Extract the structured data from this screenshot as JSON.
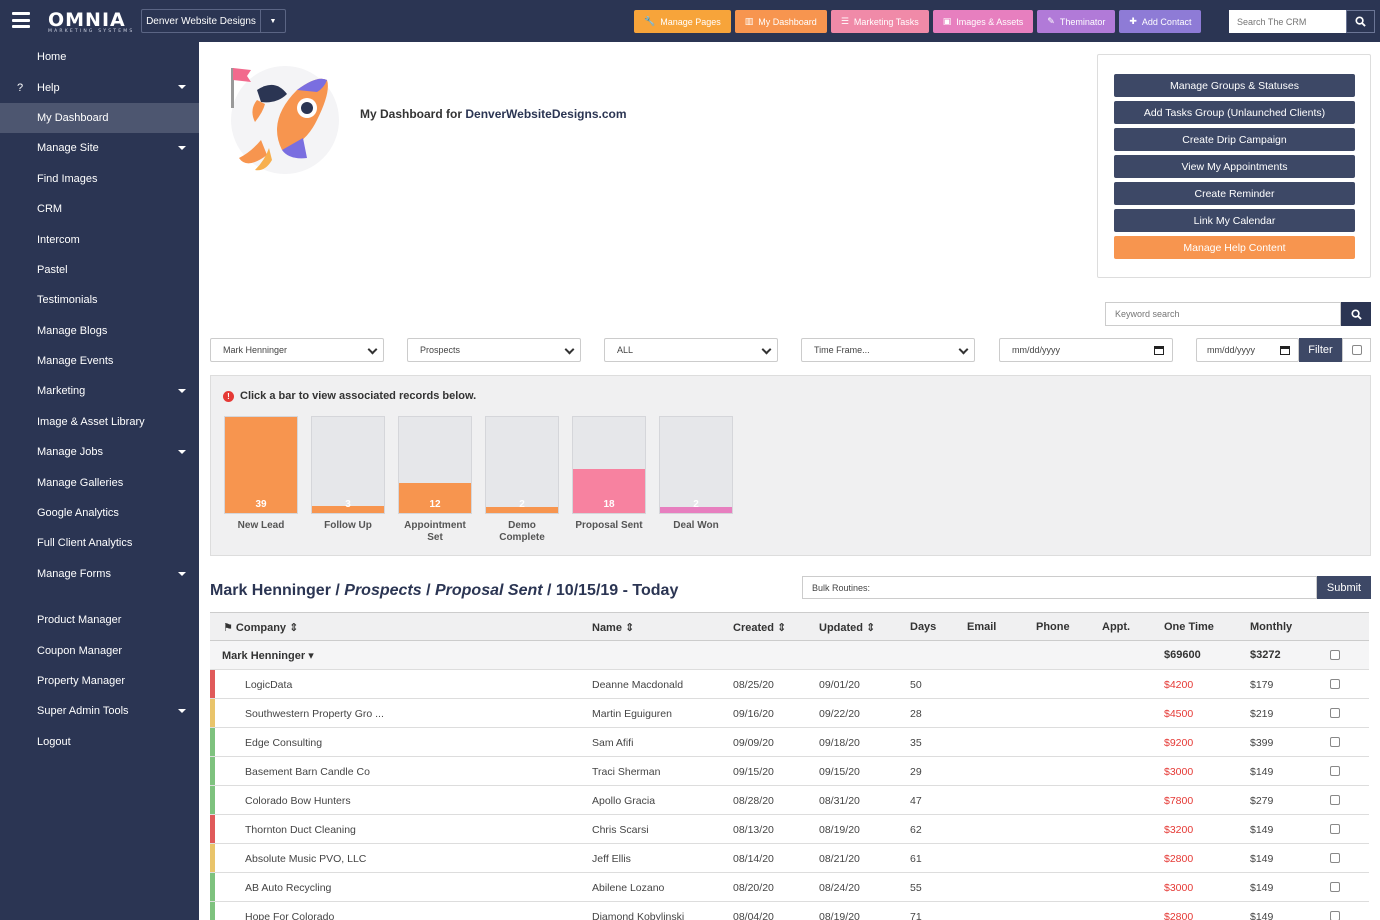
{
  "topbar": {
    "logo": "OMNIA",
    "logo_sub": "MARKETING SYSTEMS",
    "site_select": "Denver Website Designs",
    "buttons": [
      {
        "label": "Manage Pages",
        "icon": "wrench-icon",
        "color": "#f7a43a"
      },
      {
        "label": "My Dashboard",
        "icon": "chart-icon",
        "color": "#f7954f"
      },
      {
        "label": "Marketing Tasks",
        "icon": "list-icon",
        "color": "#f08aa8"
      },
      {
        "label": "Images & Assets",
        "icon": "image-icon",
        "color": "#e77fbf"
      },
      {
        "label": "Theminator",
        "icon": "pencil-icon",
        "color": "#b17ad8"
      },
      {
        "label": "Add Contact",
        "icon": "user-plus-icon",
        "color": "#8e7bd6"
      }
    ],
    "search_placeholder": "Search The CRM"
  },
  "sidebar": {
    "items": [
      {
        "label": "Home",
        "icon": "home-icon",
        "dropdown": false
      },
      {
        "label": "Help",
        "icon": "question-icon",
        "dropdown": true
      },
      {
        "label": "My Dashboard",
        "icon": "chart-icon",
        "dropdown": false,
        "active": true
      },
      {
        "label": "Manage Site",
        "icon": "wrench-icon",
        "dropdown": true
      },
      {
        "label": "Find Images",
        "icon": "camera-icon",
        "dropdown": false
      },
      {
        "label": "CRM",
        "icon": "users-icon",
        "dropdown": false
      },
      {
        "label": "Intercom",
        "icon": "intercom-icon",
        "dropdown": false
      },
      {
        "label": "Pastel",
        "icon": "pastel-icon",
        "dropdown": false
      },
      {
        "label": "Testimonials",
        "icon": "megaphone-icon",
        "dropdown": false
      },
      {
        "label": "Manage Blogs",
        "icon": "comments-icon",
        "dropdown": false
      },
      {
        "label": "Manage Events",
        "icon": "calendar-icon",
        "dropdown": false
      },
      {
        "label": "Marketing",
        "icon": "bullhorn-icon",
        "dropdown": true
      },
      {
        "label": "Image & Asset Library",
        "icon": "image-icon",
        "dropdown": false
      },
      {
        "label": "Manage Jobs",
        "icon": "briefcase-icon",
        "dropdown": true
      },
      {
        "label": "Manage Galleries",
        "icon": "images-icon",
        "dropdown": false
      },
      {
        "label": "Google Analytics",
        "icon": "chart-icon",
        "dropdown": false
      },
      {
        "label": "Full Client Analytics",
        "icon": "pie-chart-icon",
        "dropdown": false
      },
      {
        "label": "Manage Forms",
        "icon": "file-icon",
        "dropdown": true
      }
    ],
    "items2": [
      {
        "label": "Product Manager",
        "icon": "gear-icon",
        "dropdown": false
      },
      {
        "label": "Coupon Manager",
        "icon": "gear-icon",
        "dropdown": false
      },
      {
        "label": "Property Manager",
        "icon": "gear-icon",
        "dropdown": false
      },
      {
        "label": "Super Admin Tools",
        "icon": "star-icon",
        "dropdown": true
      },
      {
        "label": "Logout",
        "icon": "unlock-icon",
        "dropdown": false
      }
    ]
  },
  "dashboard": {
    "title_prefix": "My Dashboard for",
    "title_link": "DenverWebsiteDesigns.com"
  },
  "actions": [
    {
      "label": "Manage Groups & Statuses",
      "style": "dark"
    },
    {
      "label": "Add Tasks Group (Unlaunched Clients)",
      "style": "dark"
    },
    {
      "label": "Create Drip Campaign",
      "style": "dark"
    },
    {
      "label": "View My Appointments",
      "style": "dark"
    },
    {
      "label": "Create Reminder",
      "style": "dark"
    },
    {
      "label": "Link My Calendar",
      "style": "dark"
    },
    {
      "label": "Manage Help Content",
      "style": "orange"
    }
  ],
  "keyword_placeholder": "Keyword search",
  "filters": {
    "user": "Mark Henninger",
    "type": "Prospects",
    "scope": "ALL",
    "timeframe": "Time Frame...",
    "date_from": "mm/dd/yyyy",
    "date_to": "mm/dd/yyyy",
    "filter_label": "Filter"
  },
  "chart_hint": "Click a bar to view associated records below.",
  "chart_data": {
    "type": "bar",
    "categories": [
      "New Lead",
      "Follow Up",
      "Appointment Set",
      "Demo Complete",
      "Proposal Sent",
      "Deal Won"
    ],
    "values": [
      39,
      3,
      12,
      2,
      18,
      2
    ],
    "colors": [
      "#f7954f",
      "#f7954f",
      "#f7954f",
      "#f7954f",
      "#f782a0",
      "#e77fbf"
    ],
    "ylim": [
      0,
      39
    ]
  },
  "records": {
    "user": "Mark Henninger",
    "type": "Prospects",
    "status": "Proposal Sent",
    "range": "10/15/19 - Today",
    "bulk_placeholder": "Bulk Routines:",
    "submit": "Submit"
  },
  "table": {
    "headers": {
      "company": "Company",
      "name": "Name",
      "created": "Created",
      "updated": "Updated",
      "days": "Days",
      "email": "Email",
      "phone": "Phone",
      "appt": "Appt.",
      "onetime": "One Time",
      "monthly": "Monthly"
    },
    "group": {
      "name": "Mark Henninger",
      "onetime": "$69600",
      "monthly": "$3272"
    },
    "rows": [
      {
        "company": "LogicData",
        "name": "Deanne Macdonald",
        "created": "08/25/20",
        "updated": "09/01/20",
        "days": "50",
        "onetime": "$4200",
        "monthly": "$179",
        "stripe": "#e05a5a",
        "phone1": "#5cb85c",
        "phone2": "#e53935"
      },
      {
        "company": "Southwestern Property Gro ...",
        "name": "Martin Eguiguren",
        "created": "09/16/20",
        "updated": "09/22/20",
        "days": "28",
        "onetime": "$4500",
        "monthly": "$219",
        "stripe": "#e9c46a",
        "phone1": "#5cb85c",
        "phone2": "#e53935"
      },
      {
        "company": "Edge Consulting",
        "name": "Sam Afifi",
        "created": "09/09/20",
        "updated": "09/18/20",
        "days": "35",
        "onetime": "$9200",
        "monthly": "$399",
        "stripe": "#7ec27e",
        "phone1": "#5cb85c",
        "phone2": "#e53935"
      },
      {
        "company": "Basement Barn Candle Co",
        "name": "Traci Sherman",
        "created": "09/15/20",
        "updated": "09/15/20",
        "days": "29",
        "onetime": "$3000",
        "monthly": "$149",
        "stripe": "#7ec27e",
        "phone1": "#e53935",
        "phone2": "#5cb85c"
      },
      {
        "company": "Colorado Bow Hunters",
        "name": "Apollo Gracia",
        "created": "08/28/20",
        "updated": "08/31/20",
        "days": "47",
        "onetime": "$7800",
        "monthly": "$279",
        "stripe": "#7ec27e",
        "phone1": "#e53935",
        "phone2": "#e53935"
      },
      {
        "company": "Thornton Duct Cleaning",
        "name": "Chris Scarsi",
        "created": "08/13/20",
        "updated": "08/19/20",
        "days": "62",
        "onetime": "$3200",
        "monthly": "$149",
        "stripe": "#e05a5a",
        "phone1": "#5cb85c",
        "phone2": "#e53935"
      },
      {
        "company": "Absolute Music PVO, LLC",
        "name": "Jeff Ellis",
        "created": "08/14/20",
        "updated": "08/21/20",
        "days": "61",
        "onetime": "$2800",
        "monthly": "$149",
        "stripe": "#e9c46a",
        "phone1": "#5cb85c",
        "phone2": "#e53935"
      },
      {
        "company": "AB Auto Recycling",
        "name": "Abilene Lozano",
        "created": "08/20/20",
        "updated": "08/24/20",
        "days": "55",
        "onetime": "$3000",
        "monthly": "$149",
        "stripe": "#7ec27e",
        "phone1": "#5cb85c",
        "phone2": "#e53935"
      },
      {
        "company": "Hope For Colorado",
        "name": "Diamond Kobylinski",
        "created": "08/04/20",
        "updated": "08/19/20",
        "days": "71",
        "onetime": "$2800",
        "monthly": "$149",
        "stripe": "#7ec27e",
        "phone1": "#5cb85c",
        "phone2": "#e53935"
      }
    ]
  }
}
